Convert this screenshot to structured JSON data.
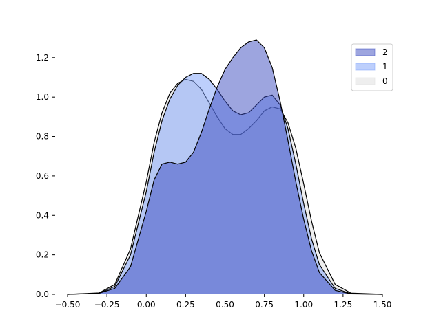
{
  "chart_data": {
    "type": "area",
    "x": [
      -0.5,
      -0.3,
      -0.2,
      -0.1,
      0,
      0.05,
      0.1,
      0.15,
      0.2,
      0.25,
      0.3,
      0.35,
      0.4,
      0.45,
      0.5,
      0.55,
      0.6,
      0.65,
      0.7,
      0.75,
      0.8,
      0.85,
      0.9,
      0.95,
      1.0,
      1.05,
      1.1,
      1.2,
      1.3,
      1.5
    ],
    "series": [
      {
        "name": "2",
        "color": "#3b4cc0",
        "values": [
          0,
          0.005,
          0.03,
          0.14,
          0.42,
          0.58,
          0.66,
          0.67,
          0.66,
          0.67,
          0.72,
          0.82,
          0.94,
          1.05,
          1.14,
          1.2,
          1.25,
          1.28,
          1.29,
          1.25,
          1.15,
          0.98,
          0.78,
          0.57,
          0.38,
          0.22,
          0.11,
          0.02,
          0.002,
          0
        ]
      },
      {
        "name": "1",
        "color": "#7b9ff9",
        "values": [
          0,
          0.005,
          0.04,
          0.2,
          0.52,
          0.72,
          0.88,
          0.99,
          1.06,
          1.1,
          1.12,
          1.12,
          1.09,
          1.04,
          0.98,
          0.93,
          0.91,
          0.92,
          0.96,
          1.0,
          1.01,
          0.96,
          0.84,
          0.66,
          0.46,
          0.28,
          0.15,
          0.03,
          0.003,
          0
        ]
      },
      {
        "name": "0",
        "color": "#dddddd",
        "values": [
          0,
          0.007,
          0.05,
          0.23,
          0.57,
          0.77,
          0.92,
          1.02,
          1.07,
          1.09,
          1.08,
          1.04,
          0.97,
          0.9,
          0.84,
          0.81,
          0.81,
          0.84,
          0.88,
          0.93,
          0.95,
          0.94,
          0.87,
          0.74,
          0.56,
          0.37,
          0.21,
          0.05,
          0.006,
          0
        ]
      }
    ],
    "xlim": [
      -0.5,
      1.5
    ],
    "ylim": [
      0,
      1.29
    ],
    "xticks": [
      {
        "value": -0.5,
        "label": "−0.50"
      },
      {
        "value": -0.25,
        "label": "−0.25"
      },
      {
        "value": 0,
        "label": "0.00"
      },
      {
        "value": 0.25,
        "label": "0.25"
      },
      {
        "value": 0.5,
        "label": "0.50"
      },
      {
        "value": 0.75,
        "label": "0.75"
      },
      {
        "value": 1.0,
        "label": "1.00"
      },
      {
        "value": 1.25,
        "label": "1.25"
      },
      {
        "value": 1.5,
        "label": "1.50"
      }
    ],
    "yticks": [
      {
        "value": 0,
        "label": "0.0"
      },
      {
        "value": 0.2,
        "label": "0.2"
      },
      {
        "value": 0.4,
        "label": "0.4"
      },
      {
        "value": 0.6,
        "label": "0.6"
      },
      {
        "value": 0.8,
        "label": "0.8"
      },
      {
        "value": 1.0,
        "label": "1.0"
      },
      {
        "value": 1.2,
        "label": "1.2"
      }
    ],
    "legend": "upper right"
  }
}
